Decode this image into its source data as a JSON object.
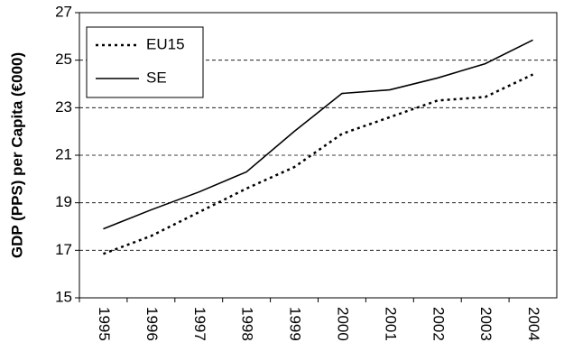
{
  "chart_data": {
    "type": "line",
    "y_label": "GDP (PPS) per Capita (€000)",
    "categories": [
      "1995",
      "1996",
      "1997",
      "1998",
      "1999",
      "2000",
      "2001",
      "2002",
      "2003",
      "2004"
    ],
    "series": [
      {
        "name": "EU15",
        "color": "#000000",
        "style": "dotted",
        "values": [
          16.85,
          17.6,
          18.6,
          19.6,
          20.5,
          21.9,
          22.6,
          23.3,
          23.45,
          24.4
        ]
      },
      {
        "name": "SE",
        "color": "#000000",
        "style": "solid",
        "values": [
          17.9,
          18.7,
          19.45,
          20.3,
          22.0,
          23.6,
          23.75,
          24.25,
          24.85,
          25.85
        ]
      }
    ],
    "ylim": [
      15,
      27
    ],
    "yticks": [
      15,
      17,
      19,
      21,
      23,
      25,
      27
    ],
    "grid": true,
    "legend": "upper left"
  }
}
